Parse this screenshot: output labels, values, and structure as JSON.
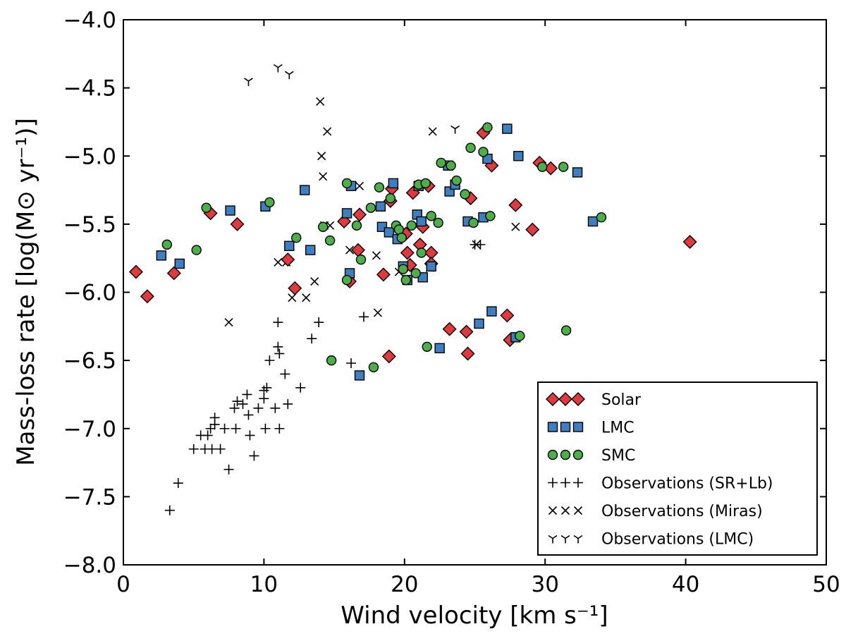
{
  "chart_data": {
    "type": "scatter",
    "title": "",
    "xlabel": "Wind velocity [km s⁻¹]",
    "ylabel": "Mass-loss rate [log(M⊙ yr⁻¹)]",
    "xlim": [
      0,
      50
    ],
    "ylim": [
      -8.0,
      -4.0
    ],
    "xticks": [
      0,
      10,
      20,
      30,
      40,
      50
    ],
    "xtick_labels": [
      "0",
      "10",
      "20",
      "30",
      "40",
      "50"
    ],
    "yticks": [
      -8.0,
      -7.5,
      -7.0,
      -6.5,
      -6.0,
      -5.5,
      -5.0,
      -4.5,
      -4.0
    ],
    "ytick_labels": [
      "−8.0",
      "−7.5",
      "−7.0",
      "−6.5",
      "−6.0",
      "−5.5",
      "−5.0",
      "−4.5",
      "−4.0"
    ],
    "grid": false,
    "legend_position": "lower-right",
    "series": [
      {
        "name": "Solar",
        "marker": "diamond",
        "color": "#e0393e",
        "x": [
          0.9,
          1.7,
          3.6,
          6.2,
          8.1,
          11.7,
          12.2,
          15.7,
          16.1,
          16.7,
          16.8,
          18.5,
          18.9,
          19.0,
          19.1,
          20.1,
          20.2,
          20.4,
          20.6,
          21.1,
          21.3,
          21.7,
          21.9,
          21.9,
          23.2,
          24.4,
          24.5,
          24.7,
          25.6,
          26.2,
          27.3,
          27.5,
          27.9,
          29.1,
          29.6,
          30.4,
          40.3
        ],
        "y": [
          -5.85,
          -6.03,
          -5.86,
          -5.42,
          -5.5,
          -5.76,
          -5.97,
          -5.48,
          -5.92,
          -5.69,
          -5.43,
          -5.87,
          -6.47,
          -5.33,
          -5.24,
          -5.57,
          -5.71,
          -5.8,
          -5.27,
          -5.65,
          -5.52,
          -5.22,
          -5.71,
          -5.79,
          -6.27,
          -6.29,
          -6.45,
          -5.31,
          -4.83,
          -5.07,
          -6.17,
          -6.35,
          -5.36,
          -5.54,
          -5.05,
          -5.09,
          -5.63
        ]
      },
      {
        "name": "LMC",
        "marker": "square",
        "color": "#3f7fbf",
        "x": [
          2.7,
          4.0,
          7.6,
          10.1,
          11.8,
          12.9,
          13.3,
          15.9,
          16.1,
          16.2,
          16.8,
          18.3,
          18.4,
          18.9,
          19.2,
          19.5,
          19.9,
          20.2,
          20.9,
          21.0,
          21.2,
          21.3,
          21.9,
          22.5,
          23.1,
          23.2,
          23.6,
          24.5,
          25.3,
          25.6,
          25.9,
          26.2,
          27.3,
          27.9,
          28.1,
          32.3,
          33.4
        ],
        "y": [
          -5.73,
          -5.79,
          -5.4,
          -5.37,
          -5.66,
          -5.25,
          -5.69,
          -5.42,
          -5.86,
          -5.22,
          -6.61,
          -5.37,
          -5.52,
          -5.56,
          -5.2,
          -5.61,
          -5.81,
          -5.91,
          -5.43,
          -5.22,
          -5.48,
          -5.89,
          -5.81,
          -6.41,
          -5.07,
          -5.26,
          -5.21,
          -5.48,
          -6.23,
          -5.45,
          -5.02,
          -6.14,
          -4.8,
          -6.33,
          -5.0,
          -5.12,
          -5.48
        ]
      },
      {
        "name": "SMC",
        "marker": "circle",
        "color": "#4daf4a",
        "x": [
          3.1,
          5.2,
          5.9,
          10.4,
          12.3,
          14.2,
          14.7,
          14.8,
          15.9,
          15.9,
          16.6,
          16.9,
          17.6,
          17.8,
          18.2,
          19.0,
          19.4,
          19.6,
          19.8,
          19.9,
          20.1,
          20.5,
          20.8,
          21.0,
          21.2,
          21.5,
          21.6,
          21.9,
          22.4,
          22.6,
          23.3,
          23.7,
          24.3,
          24.7,
          24.9,
          25.6,
          25.9,
          26.1,
          28.2,
          29.8,
          31.3,
          31.5,
          34.0
        ],
        "y": [
          -5.65,
          -5.69,
          -5.38,
          -5.34,
          -5.6,
          -5.52,
          -5.62,
          -6.5,
          -5.91,
          -5.2,
          -5.51,
          -5.76,
          -5.38,
          -6.55,
          -5.23,
          -5.31,
          -5.51,
          -5.54,
          -5.6,
          -5.83,
          -5.91,
          -5.51,
          -5.86,
          -5.21,
          -5.71,
          -5.2,
          -6.4,
          -5.44,
          -5.49,
          -5.05,
          -5.07,
          -5.18,
          -5.28,
          -4.94,
          -5.49,
          -4.97,
          -4.79,
          -5.44,
          -6.32,
          -5.08,
          -5.08,
          -6.28,
          -5.45
        ]
      },
      {
        "name": "Observations (SR+Lb)",
        "marker": "plus",
        "color": "#000000",
        "x": [
          3.3,
          3.9,
          5.0,
          5.5,
          5.8,
          6.0,
          6.2,
          6.3,
          6.5,
          6.5,
          6.9,
          7.2,
          7.5,
          7.9,
          8.0,
          8.1,
          8.5,
          8.8,
          8.9,
          9.0,
          9.3,
          9.6,
          10.0,
          10.0,
          10.1,
          10.2,
          10.4,
          10.8,
          11.0,
          11.0,
          11.1,
          11.1,
          11.5,
          11.7,
          12.6,
          13.4,
          13.9,
          16.2,
          17.1,
          25.0,
          25.4
        ],
        "y": [
          -7.6,
          -7.4,
          -7.15,
          -7.05,
          -7.15,
          -7.05,
          -7.0,
          -7.15,
          -6.97,
          -6.92,
          -7.15,
          -7.0,
          -7.3,
          -6.85,
          -7.0,
          -6.8,
          -6.82,
          -6.75,
          -6.9,
          -7.05,
          -7.2,
          -6.85,
          -6.72,
          -6.78,
          -7.0,
          -6.7,
          -6.5,
          -6.85,
          -6.22,
          -6.4,
          -6.45,
          -7.0,
          -6.6,
          -6.82,
          -6.7,
          -6.34,
          -6.22,
          -6.52,
          -6.18,
          -5.65,
          -5.65
        ]
      },
      {
        "name": "Observations (Miras)",
        "marker": "x",
        "color": "#000000",
        "x": [
          7.5,
          11.0,
          11.6,
          12.0,
          13.0,
          13.6,
          14.0,
          14.1,
          14.2,
          14.3,
          14.5,
          14.7,
          16.1,
          16.8,
          18.0,
          18.1,
          19.6,
          21.8,
          22.0,
          25.1,
          27.9
        ],
        "y": [
          -6.22,
          -5.78,
          -5.78,
          -6.04,
          -6.04,
          -5.92,
          -4.6,
          -5.0,
          -5.15,
          -5.51,
          -4.82,
          -5.51,
          -5.69,
          -5.22,
          -5.73,
          -6.15,
          -5.85,
          -5.82,
          -4.82,
          -5.65,
          -5.52
        ]
      },
      {
        "name": "Observations (LMC)",
        "marker": "tri_down",
        "color": "#000000",
        "x": [
          8.9,
          11.0,
          11.8,
          23.6
        ],
        "y": [
          -4.45,
          -4.35,
          -4.4,
          -4.8
        ]
      }
    ]
  }
}
